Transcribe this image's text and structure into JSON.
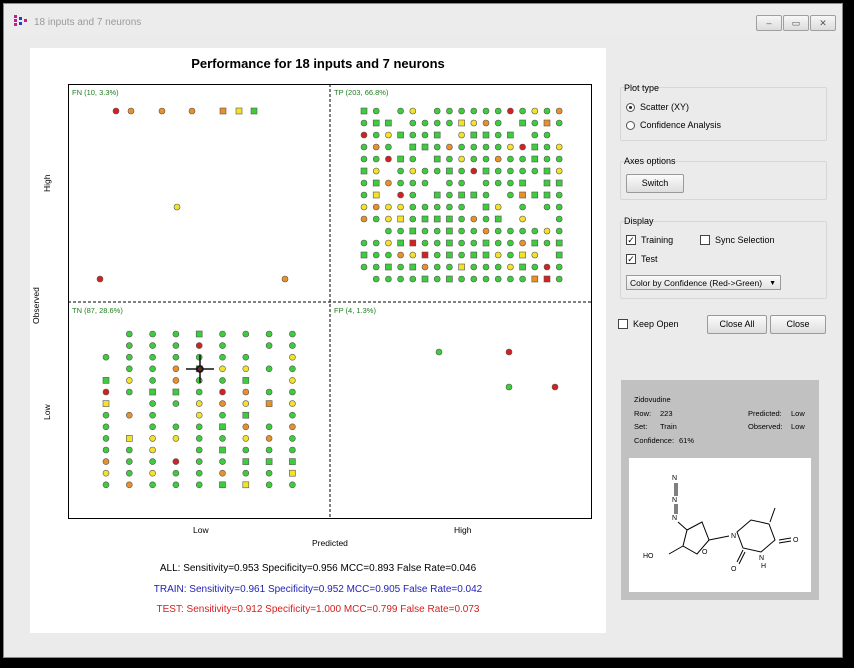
{
  "window": {
    "title": "18 inputs and 7 neurons",
    "minimize": "‒",
    "restore": "▭",
    "close": "✕"
  },
  "plot": {
    "title": "Performance for 18 inputs and 7 neurons",
    "quadrants": {
      "fn": "FN (10, 3.3%)",
      "tp": "TP (203, 66.8%)",
      "tn": "TN (87, 28.6%)",
      "fp": "FP (4, 1.3%)"
    },
    "x_ticks": [
      "Low",
      "High"
    ],
    "y_ticks": [
      "High",
      "Low"
    ],
    "xlabel": "Predicted",
    "ylabel": "Observed"
  },
  "stats": {
    "all": "ALL: Sensitivity=0.953 Specificity=0.956 MCC=0.893 False Rate=0.046",
    "train": "TRAIN: Sensitivity=0.961 Specificity=0.952 MCC=0.905 False Rate=0.042",
    "test": "TEST: Sensitivity=0.912 Specificity=1.000 MCC=0.799 False Rate=0.073"
  },
  "colors": {
    "all": "#000000",
    "train": "#1f1fb4",
    "test": "#d42020",
    "quad_label": "#1f7d1f",
    "green": "#3ccc3c",
    "yellow": "#f2e22a",
    "orange": "#e8902a",
    "red": "#d42020"
  },
  "sidebar": {
    "plot_type": {
      "title": "Plot type",
      "options": [
        "Scatter (XY)",
        "Confidence Analysis"
      ],
      "selected": "Scatter (XY)"
    },
    "axes_options": {
      "title": "Axes options",
      "switch": "Switch"
    },
    "display": {
      "title": "Display",
      "training": "Training",
      "sync": "Sync Selection",
      "test": "Test",
      "color_mode": "Color by Confidence (Red->Green)"
    },
    "keep_open": "Keep Open",
    "close_all": "Close All",
    "close": "Close"
  },
  "info": {
    "name": "Zidovudine",
    "row_label": "Row:",
    "row": "223",
    "set_label": "Set:",
    "set": "Train",
    "confidence_label": "Confidence:",
    "confidence": "61%",
    "predicted_label": "Predicted:",
    "predicted": "Low",
    "observed_label": "Observed:",
    "observed": "Low"
  },
  "molecule": {
    "atoms": [
      "N",
      "N",
      "N",
      "HO",
      "O",
      "N",
      "N",
      "H",
      "O",
      "O"
    ]
  },
  "chart_data": {
    "type": "scatter",
    "title": "Performance for 18 inputs and 7 neurons",
    "xlabel": "Predicted",
    "ylabel": "Observed",
    "x_categories": [
      "Low",
      "High"
    ],
    "y_categories": [
      "Low",
      "High"
    ],
    "quadrants": [
      {
        "name": "FN",
        "count": 10,
        "percent": 3.3
      },
      {
        "name": "TP",
        "count": 203,
        "percent": 66.8
      },
      {
        "name": "TN",
        "count": 87,
        "percent": 28.6
      },
      {
        "name": "FP",
        "count": 4,
        "percent": 1.3
      }
    ],
    "color_scale": "Confidence (Red->Green)",
    "marker_shapes": {
      "circle": "Test",
      "square": "Training"
    },
    "selected_point": {
      "row": 223,
      "predicted": "Low",
      "observed": "Low",
      "confidence": 0.61
    },
    "grid": false
  }
}
